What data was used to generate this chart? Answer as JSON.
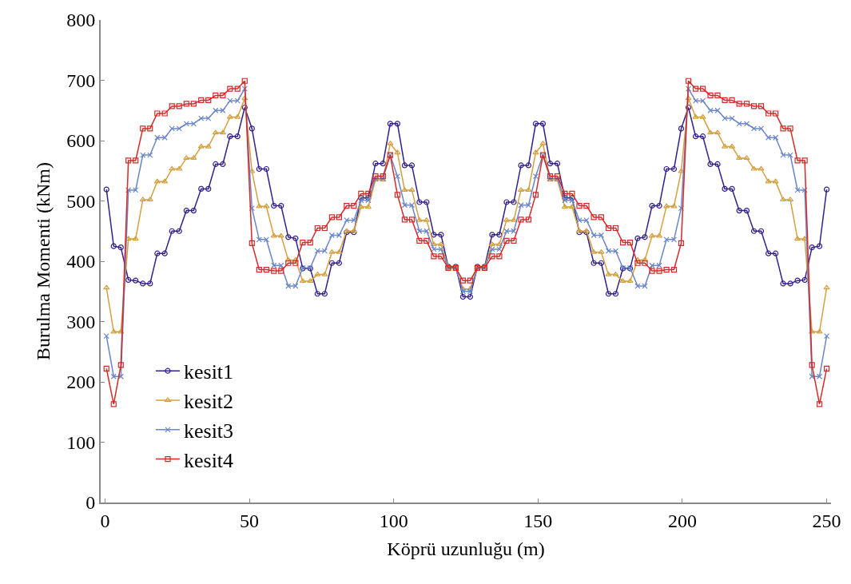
{
  "chart_data": {
    "type": "line",
    "xlabel": "Köprü uzunluğu (m)",
    "ylabel": "Burulma Momenti (kNm)",
    "x": [
      0.5,
      3.0,
      5.5,
      8.1,
      10.6,
      13.1,
      15.6,
      18.1,
      20.7,
      23.2,
      25.7,
      28.2,
      30.7,
      33.3,
      35.8,
      38.3,
      40.8,
      43.3,
      45.9,
      48.4,
      50.9,
      53.4,
      55.9,
      58.5,
      61.0,
      63.5,
      66.0,
      68.5,
      71.1,
      73.6,
      76.1,
      78.6,
      81.1,
      83.7,
      86.2,
      88.7,
      91.2,
      93.7,
      96.3,
      98.8,
      101.3,
      103.8,
      106.3,
      108.9,
      111.4,
      113.9,
      116.4,
      118.9,
      121.5,
      124.0,
      126.5,
      129.0,
      131.5,
      134.1,
      136.6,
      139.1,
      141.6,
      144.1,
      146.7,
      149.2,
      151.7,
      154.2,
      156.7,
      159.3,
      161.8,
      164.3,
      166.8,
      169.3,
      171.9,
      174.4,
      176.9,
      179.4,
      181.9,
      184.5,
      187.0,
      189.5,
      192.0,
      194.5,
      197.1,
      199.6,
      202.1,
      204.6,
      207.1,
      209.7,
      212.2,
      214.7,
      217.2,
      219.7,
      222.3,
      224.8,
      227.3,
      229.8,
      232.3,
      234.9,
      237.4,
      239.9,
      242.4,
      244.9,
      247.5,
      250.0
    ],
    "series": [
      {
        "name": "kesit1",
        "color": "#34208a",
        "marker": "circle",
        "values": [
          519,
          425,
          423,
          369,
          368,
          363,
          363,
          413,
          413,
          450,
          450,
          484,
          484,
          520,
          520,
          561,
          561,
          607,
          607,
          655,
          620,
          553,
          553,
          492,
          492,
          440,
          438,
          388,
          388,
          346,
          346,
          397,
          397,
          448,
          448,
          505,
          505,
          562,
          562,
          628,
          628,
          559,
          559,
          498,
          498,
          444,
          444,
          391,
          391,
          341,
          341,
          391,
          391,
          444,
          444,
          498,
          498,
          559,
          559,
          628,
          628,
          562,
          562,
          505,
          505,
          448,
          448,
          397,
          397,
          346,
          346,
          388,
          388,
          438,
          440,
          492,
          492,
          553,
          553,
          620,
          655,
          607,
          607,
          561,
          561,
          520,
          520,
          484,
          484,
          450,
          450,
          413,
          413,
          363,
          363,
          368,
          369,
          423,
          425,
          519
        ]
      },
      {
        "name": "kesit2",
        "color": "#d4a040",
        "marker": "triangle",
        "values": [
          356,
          283,
          283,
          437,
          437,
          502,
          502,
          532,
          532,
          553,
          553,
          571,
          571,
          590,
          590,
          613,
          613,
          639,
          639,
          670,
          549,
          491,
          491,
          442,
          442,
          402,
          402,
          367,
          367,
          378,
          378,
          415,
          415,
          450,
          450,
          490,
          490,
          535,
          535,
          595,
          580,
          518,
          518,
          468,
          468,
          428,
          428,
          390,
          390,
          354,
          354,
          390,
          390,
          428,
          428,
          468,
          468,
          518,
          518,
          580,
          595,
          535,
          535,
          490,
          490,
          450,
          450,
          415,
          415,
          378,
          378,
          367,
          367,
          402,
          402,
          442,
          442,
          491,
          491,
          549,
          670,
          639,
          639,
          613,
          613,
          590,
          590,
          571,
          571,
          553,
          553,
          532,
          532,
          502,
          502,
          437,
          437,
          283,
          283,
          356
        ]
      },
      {
        "name": "kesit3",
        "color": "#6a86c8",
        "marker": "cross",
        "values": [
          276,
          209,
          209,
          518,
          518,
          576,
          576,
          605,
          605,
          620,
          620,
          628,
          628,
          637,
          637,
          650,
          650,
          666,
          666,
          686,
          488,
          436,
          436,
          393,
          393,
          359,
          359,
          389,
          389,
          417,
          417,
          443,
          443,
          468,
          468,
          501,
          501,
          537,
          537,
          576,
          541,
          493,
          493,
          450,
          450,
          420,
          420,
          389,
          389,
          350,
          350,
          389,
          389,
          420,
          420,
          450,
          450,
          493,
          493,
          541,
          576,
          537,
          537,
          501,
          501,
          468,
          468,
          443,
          443,
          417,
          417,
          389,
          389,
          359,
          359,
          393,
          393,
          436,
          436,
          488,
          686,
          666,
          666,
          650,
          650,
          637,
          637,
          628,
          628,
          620,
          620,
          605,
          605,
          576,
          576,
          518,
          518,
          209,
          209,
          276
        ]
      },
      {
        "name": "kesit4",
        "color": "#d42a2a",
        "marker": "square",
        "values": [
          222,
          163,
          228,
          567,
          567,
          620,
          620,
          645,
          645,
          657,
          657,
          661,
          661,
          667,
          667,
          675,
          675,
          686,
          686,
          699,
          430,
          386,
          386,
          384,
          384,
          397,
          397,
          431,
          431,
          455,
          455,
          473,
          473,
          492,
          492,
          512,
          512,
          541,
          541,
          576,
          510,
          469,
          469,
          434,
          434,
          408,
          408,
          389,
          389,
          368,
          368,
          389,
          389,
          408,
          408,
          434,
          434,
          469,
          469,
          510,
          576,
          541,
          541,
          512,
          512,
          492,
          492,
          473,
          473,
          455,
          455,
          431,
          431,
          397,
          397,
          384,
          384,
          386,
          386,
          430,
          699,
          686,
          686,
          675,
          675,
          667,
          667,
          661,
          661,
          657,
          657,
          645,
          645,
          620,
          620,
          567,
          567,
          228,
          163,
          222
        ]
      }
    ],
    "xlim": [
      -1.5,
      251.5
    ],
    "xticks": [
      0,
      50,
      100,
      150,
      200,
      250
    ],
    "ylim": [
      0,
      800
    ],
    "yticks": [
      0,
      100,
      200,
      300,
      400,
      500,
      600,
      700,
      800
    ],
    "grid": false,
    "legend": "bottom left",
    "line_style": "solid"
  }
}
